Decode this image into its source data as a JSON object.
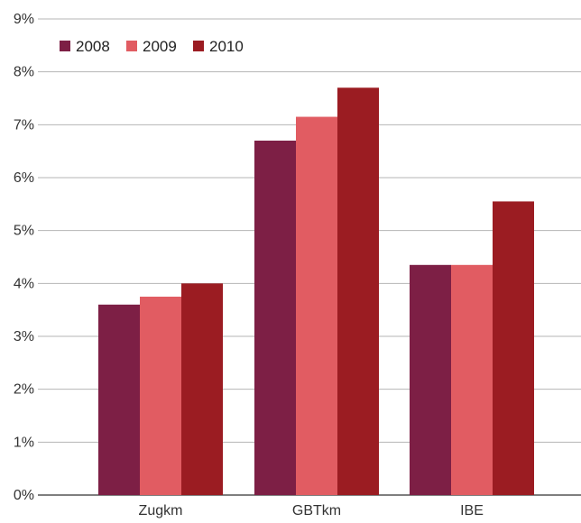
{
  "chart_data": {
    "type": "bar",
    "title": "",
    "xlabel": "",
    "ylabel": "",
    "categories": [
      "Zugkm",
      "GBTkm",
      "IBE"
    ],
    "series": [
      {
        "name": "2008",
        "color": "#7d1f45",
        "values": [
          3.6,
          6.7,
          4.35
        ]
      },
      {
        "name": "2009",
        "color": "#e15c62",
        "values": [
          3.75,
          7.15,
          4.35
        ]
      },
      {
        "name": "2010",
        "color": "#9b1c22",
        "values": [
          4.0,
          7.7,
          5.55
        ]
      }
    ],
    "ylim": [
      0,
      9
    ],
    "yticks": [
      "0%",
      "1%",
      "2%",
      "3%",
      "4%",
      "5%",
      "6%",
      "7%",
      "8%",
      "9%"
    ],
    "y_unit": "%",
    "grid": true,
    "legend_position": "top-left",
    "gridline_color": "#b5b5b5",
    "axis_color": "#555555"
  }
}
